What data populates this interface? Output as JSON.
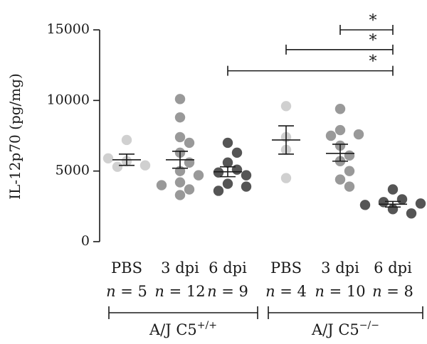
{
  "chart_data": {
    "type": "scatter",
    "ylabel": "IL-12p70 (pg/mg)",
    "ylim": [
      0,
      15000
    ],
    "yticks": [
      0,
      5000,
      10000,
      15000
    ],
    "ytick_labels": [
      "0",
      "5000",
      "10000",
      "15000"
    ],
    "categories": [
      {
        "label": "PBS",
        "n_label": "n = 5",
        "color": "#d0d0d0",
        "values": [
          5700,
          7200,
          5400,
          5900,
          5300
        ],
        "mean": 5800,
        "sem_low": 5400,
        "sem_high": 6200
      },
      {
        "label": "3 dpi",
        "n_label": "n = 12",
        "color": "#999999",
        "values": [
          10100,
          8800,
          7400,
          7000,
          6300,
          5600,
          5000,
          4700,
          4200,
          4000,
          3700,
          3300
        ],
        "mean": 5800,
        "sem_low": 5200,
        "sem_high": 6400
      },
      {
        "label": "6 dpi",
        "n_label": "n = 9",
        "color": "#555555",
        "values": [
          7000,
          6300,
          5600,
          5100,
          4900,
          4700,
          4100,
          3900,
          3600
        ],
        "mean": 4950,
        "sem_low": 4600,
        "sem_high": 5300
      },
      {
        "label": "PBS",
        "n_label": "n = 4",
        "color": "#d0d0d0",
        "values": [
          9600,
          7400,
          6500,
          4500
        ],
        "mean": 7200,
        "sem_low": 6200,
        "sem_high": 8200
      },
      {
        "label": "3 dpi",
        "n_label": "n = 10",
        "color": "#999999",
        "values": [
          9400,
          7900,
          7600,
          7500,
          6800,
          6100,
          5700,
          5000,
          4400,
          3900
        ],
        "mean": 6250,
        "sem_low": 5700,
        "sem_high": 6900
      },
      {
        "label": "6 dpi",
        "n_label": "n = 8",
        "color": "#555555",
        "values": [
          3700,
          3000,
          2800,
          2700,
          2600,
          2500,
          2300,
          2000
        ],
        "mean": 2650,
        "sem_low": 2450,
        "sem_high": 2850
      }
    ],
    "groups": [
      {
        "label": "A/J C5",
        "sup": "+/+",
        "from": 0,
        "to": 2
      },
      {
        "label": "A/J C5",
        "sup": "−/−",
        "from": 3,
        "to": 5
      }
    ],
    "significance": [
      {
        "from": 4,
        "to": 5,
        "y": 15000,
        "label": "*"
      },
      {
        "from": 3,
        "to": 5,
        "y": 13600,
        "label": "*"
      },
      {
        "from": 2,
        "to": 5,
        "y": 12100,
        "label": "*"
      }
    ],
    "grid": false,
    "legend": "none"
  }
}
